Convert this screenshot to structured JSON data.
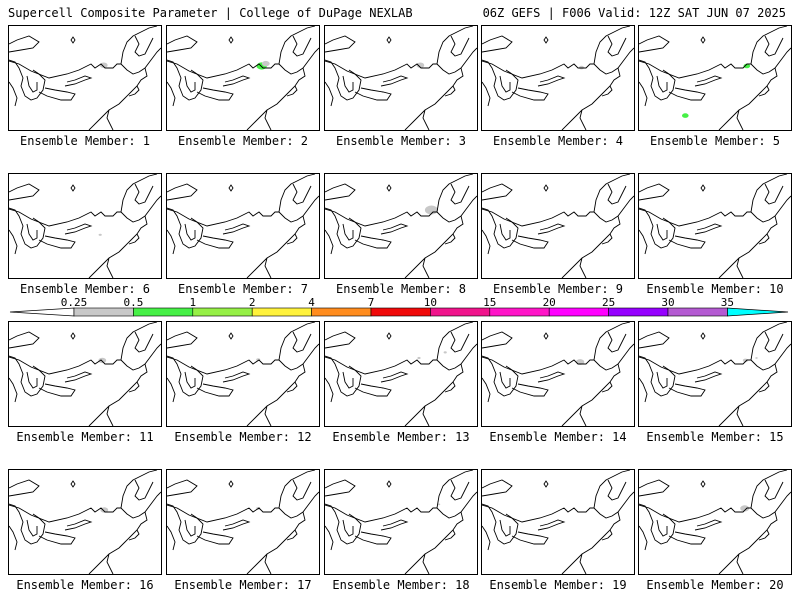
{
  "header": {
    "left_title": "Supercell Composite Parameter | College of DuPage NEXLAB",
    "right_title": "06Z GEFS | F006 Valid: 12Z SAT JUN 07 2025"
  },
  "panels": [
    {
      "label": "Ensemble Member: 1",
      "blobs": [
        {
          "level": "gray",
          "lon": -74.3,
          "lat": 43.1,
          "size": 3
        }
      ]
    },
    {
      "label": "Ensemble Member: 2",
      "blobs": [
        {
          "level": "green",
          "lon": -74.3,
          "lat": 43.0,
          "size": 4
        },
        {
          "level": "gray",
          "lon": -73.7,
          "lat": 43.3,
          "size": 3
        }
      ]
    },
    {
      "label": "Ensemble Member: 3",
      "blobs": [
        {
          "level": "gray",
          "lon": -74.2,
          "lat": 43.1,
          "size": 3
        }
      ]
    },
    {
      "label": "Ensemble Member: 4",
      "blobs": [
        {
          "level": "gray",
          "lon": -73.6,
          "lat": 42.8,
          "size": 2
        }
      ]
    },
    {
      "label": "Ensemble Member: 5",
      "blobs": [
        {
          "level": "green",
          "lon": -72.4,
          "lat": 43.0,
          "size": 2.5
        },
        {
          "level": "green",
          "lon": -81.3,
          "lat": 36.8,
          "size": 2.5
        }
      ]
    },
    {
      "label": "Ensemble Member: 6",
      "blobs": [
        {
          "level": "gray",
          "lon": -74.8,
          "lat": 40.4,
          "size": 1.2
        }
      ]
    },
    {
      "label": "Ensemble Member: 7",
      "blobs": []
    },
    {
      "label": "Ensemble Member: 8",
      "blobs": [
        {
          "level": "gray",
          "lon": -72.6,
          "lat": 43.5,
          "size": 5
        }
      ]
    },
    {
      "label": "Ensemble Member: 9",
      "blobs": []
    },
    {
      "label": "Ensemble Member: 10",
      "blobs": []
    },
    {
      "label": "Ensemble Member: 11",
      "blobs": [
        {
          "level": "gray",
          "lon": -74.5,
          "lat": 43.2,
          "size": 3
        }
      ]
    },
    {
      "label": "Ensemble Member: 12",
      "blobs": [
        {
          "level": "gray",
          "lon": -74.8,
          "lat": 43.3,
          "size": 1.5
        }
      ]
    },
    {
      "label": "Ensemble Member: 13",
      "blobs": [
        {
          "level": "gray",
          "lon": -74.4,
          "lat": 43.5,
          "size": 1.2
        },
        {
          "level": "gray",
          "lon": -70.6,
          "lat": 44.2,
          "size": 1.2
        }
      ]
    },
    {
      "label": "Ensemble Member: 14",
      "blobs": [
        {
          "level": "gray",
          "lon": -73.8,
          "lat": 43.0,
          "size": 3.2
        }
      ]
    },
    {
      "label": "Ensemble Member: 15",
      "blobs": [
        {
          "level": "gray",
          "lon": -72.6,
          "lat": 43.2,
          "size": 2
        },
        {
          "level": "gray",
          "lon": -71.0,
          "lat": 43.5,
          "size": 1
        }
      ]
    },
    {
      "label": "Ensemble Member: 16",
      "blobs": [
        {
          "level": "gray",
          "lon": -74.2,
          "lat": 43.0,
          "size": 3
        }
      ]
    },
    {
      "label": "Ensemble Member: 17",
      "blobs": [
        {
          "level": "gray",
          "lon": -74.8,
          "lat": 43.2,
          "size": 1.5
        }
      ]
    },
    {
      "label": "Ensemble Member: 18",
      "blobs": [
        {
          "level": "gray",
          "lon": -71.5,
          "lat": 43.7,
          "size": 1
        }
      ]
    },
    {
      "label": "Ensemble Member: 19",
      "blobs": []
    },
    {
      "label": "Ensemble Member: 20",
      "blobs": [
        {
          "level": "gray",
          "lon": -72.7,
          "lat": 43.2,
          "size": 3.5
        }
      ]
    }
  ],
  "map_extent": {
    "lon_min": -88,
    "lon_max": -66,
    "lat_min": 35,
    "lat_max": 48
  },
  "colorbar": {
    "ticks": [
      "0.25",
      "0.5",
      "1",
      "2",
      "4",
      "7",
      "10",
      "15",
      "20",
      "25",
      "30",
      "35"
    ],
    "colors": [
      "#c8c8c8",
      "#46f046",
      "#96f046",
      "#fff23c",
      "#ff8c1e",
      "#f00a0a",
      "#f0148c",
      "#ff14c8",
      "#ff00ff",
      "#9600ff",
      "#b45ad2",
      "#00ffff"
    ]
  },
  "level_colors": {
    "gray": "#c8c8c8",
    "green": "#46f046"
  }
}
